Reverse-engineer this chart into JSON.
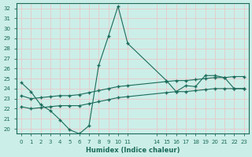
{
  "xlabel": "Humidex (Indice chaleur)",
  "bg_color": "#cceee8",
  "grid_color": "#e8c8c8",
  "line_color": "#1a6b5a",
  "xlim": [
    -0.5,
    23.5
  ],
  "ylim": [
    19.5,
    32.5
  ],
  "yticks": [
    20,
    21,
    22,
    23,
    24,
    25,
    26,
    27,
    28,
    29,
    30,
    31,
    32
  ],
  "xtick_positions": [
    0,
    1,
    2,
    3,
    4,
    5,
    6,
    7,
    8,
    9,
    10,
    11,
    14,
    15,
    16,
    17,
    18,
    19,
    20,
    21,
    22,
    23
  ],
  "xtick_labels": [
    "0",
    "1",
    "2",
    "3",
    "4",
    "5",
    "6",
    "7",
    "8",
    "9",
    "10",
    "11",
    "14",
    "15",
    "16",
    "17",
    "18",
    "19",
    "20",
    "21",
    "22",
    "23"
  ],
  "line1_x": [
    0,
    1,
    2,
    3,
    4,
    5,
    6,
    7,
    8,
    9,
    10,
    11,
    15,
    16,
    17,
    18,
    19,
    20,
    21,
    22,
    23
  ],
  "line1_y": [
    24.6,
    23.7,
    22.4,
    21.8,
    20.9,
    19.9,
    19.5,
    20.3,
    26.3,
    29.2,
    32.2,
    28.5,
    24.8,
    23.7,
    24.3,
    24.2,
    25.3,
    25.3,
    25.1,
    24.0,
    24.0
  ],
  "line2_x": [
    0,
    1,
    2,
    3,
    4,
    5,
    6,
    7,
    8,
    9,
    10,
    11,
    15,
    16,
    17,
    18,
    19,
    20,
    21,
    22,
    23
  ],
  "line2_y": [
    23.3,
    23.0,
    23.1,
    23.2,
    23.3,
    23.3,
    23.4,
    23.6,
    23.8,
    24.0,
    24.2,
    24.3,
    24.7,
    24.8,
    24.8,
    24.9,
    25.0,
    25.1,
    25.1,
    25.2,
    25.2
  ],
  "line3_x": [
    0,
    1,
    2,
    3,
    4,
    5,
    6,
    7,
    8,
    9,
    10,
    11,
    15,
    16,
    17,
    18,
    19,
    20,
    21,
    22,
    23
  ],
  "line3_y": [
    22.2,
    22.0,
    22.1,
    22.2,
    22.3,
    22.3,
    22.3,
    22.5,
    22.7,
    22.9,
    23.1,
    23.2,
    23.6,
    23.7,
    23.7,
    23.8,
    23.9,
    24.0,
    24.0,
    24.0,
    24.0
  ]
}
